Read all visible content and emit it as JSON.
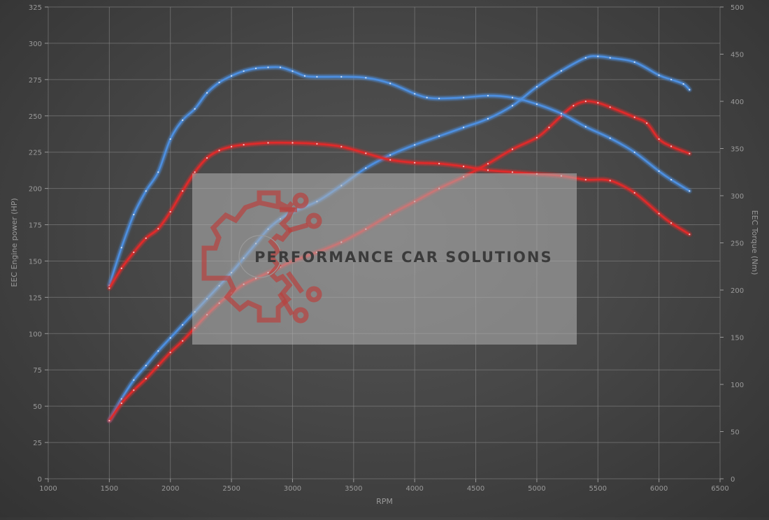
{
  "chart_data": {
    "type": "line",
    "xlabel": "RPM",
    "ylabel_left": "EEC Engine power (HP)",
    "ylabel_right": "EEC Torque (Nm)",
    "xlim": [
      1000,
      6500
    ],
    "ylim_left": [
      0,
      325
    ],
    "ylim_right": [
      0,
      500
    ],
    "x_ticks": [
      1000,
      1500,
      2000,
      2500,
      3000,
      3500,
      4000,
      4500,
      5000,
      5500,
      6000,
      6500
    ],
    "y_left_ticks": [
      0,
      25,
      50,
      75,
      100,
      125,
      150,
      175,
      200,
      225,
      250,
      275,
      300,
      325
    ],
    "y_right_ticks": [
      0,
      50,
      100,
      150,
      200,
      250,
      300,
      350,
      400,
      450,
      500
    ],
    "grid": true,
    "series": [
      {
        "color": "#4d8fe0",
        "axis": "left",
        "points": [
          [
            1500,
            40
          ],
          [
            1600,
            55
          ],
          [
            1700,
            68
          ],
          [
            1800,
            78
          ],
          [
            1900,
            88
          ],
          [
            2000,
            97
          ],
          [
            2100,
            106
          ],
          [
            2200,
            115
          ],
          [
            2300,
            124
          ],
          [
            2400,
            133
          ],
          [
            2500,
            142
          ],
          [
            2600,
            152
          ],
          [
            2700,
            162
          ],
          [
            2800,
            172
          ],
          [
            2900,
            179
          ],
          [
            3000,
            184
          ],
          [
            3200,
            191
          ],
          [
            3400,
            202
          ],
          [
            3600,
            214
          ],
          [
            3800,
            223
          ],
          [
            4000,
            230
          ],
          [
            4200,
            236
          ],
          [
            4400,
            242
          ],
          [
            4600,
            248
          ],
          [
            4800,
            257
          ],
          [
            5000,
            270
          ],
          [
            5200,
            281
          ],
          [
            5400,
            290
          ],
          [
            5500,
            291
          ],
          [
            5600,
            290
          ],
          [
            5800,
            287
          ],
          [
            6000,
            278
          ],
          [
            6100,
            275
          ],
          [
            6200,
            272
          ],
          [
            6250,
            268
          ]
        ]
      },
      {
        "color": "#e02a2a",
        "axis": "left",
        "points": [
          [
            1500,
            40
          ],
          [
            1600,
            52
          ],
          [
            1700,
            61
          ],
          [
            1800,
            69
          ],
          [
            1900,
            78
          ],
          [
            2000,
            87
          ],
          [
            2100,
            95
          ],
          [
            2200,
            104
          ],
          [
            2300,
            113
          ],
          [
            2400,
            121
          ],
          [
            2500,
            128
          ],
          [
            2600,
            134
          ],
          [
            2700,
            138
          ],
          [
            2800,
            142
          ],
          [
            2900,
            146
          ],
          [
            3000,
            150
          ],
          [
            3200,
            156
          ],
          [
            3400,
            163
          ],
          [
            3600,
            172
          ],
          [
            3800,
            182
          ],
          [
            4000,
            191
          ],
          [
            4200,
            200
          ],
          [
            4400,
            208
          ],
          [
            4600,
            217
          ],
          [
            4800,
            227
          ],
          [
            5000,
            235
          ],
          [
            5100,
            242
          ],
          [
            5200,
            250
          ],
          [
            5300,
            257
          ],
          [
            5400,
            260
          ],
          [
            5500,
            259
          ],
          [
            5600,
            256
          ],
          [
            5800,
            249
          ],
          [
            5900,
            245
          ],
          [
            6000,
            234
          ],
          [
            6100,
            229
          ],
          [
            6250,
            224
          ]
        ]
      },
      {
        "color": "#4d8fe0",
        "axis": "right",
        "points": [
          [
            1500,
            205
          ],
          [
            1600,
            245
          ],
          [
            1700,
            280
          ],
          [
            1800,
            305
          ],
          [
            1900,
            325
          ],
          [
            2000,
            360
          ],
          [
            2100,
            380
          ],
          [
            2200,
            392
          ],
          [
            2300,
            409
          ],
          [
            2400,
            420
          ],
          [
            2500,
            427
          ],
          [
            2600,
            432
          ],
          [
            2700,
            435
          ],
          [
            2800,
            436
          ],
          [
            2900,
            436
          ],
          [
            3000,
            432
          ],
          [
            3100,
            427
          ],
          [
            3200,
            426
          ],
          [
            3400,
            426
          ],
          [
            3600,
            425
          ],
          [
            3800,
            419
          ],
          [
            4000,
            408
          ],
          [
            4100,
            404
          ],
          [
            4200,
            403
          ],
          [
            4400,
            404
          ],
          [
            4600,
            406
          ],
          [
            4800,
            404
          ],
          [
            5000,
            397
          ],
          [
            5200,
            387
          ],
          [
            5400,
            373
          ],
          [
            5600,
            361
          ],
          [
            5800,
            346
          ],
          [
            6000,
            326
          ],
          [
            6100,
            317
          ],
          [
            6250,
            305
          ]
        ]
      },
      {
        "color": "#e02a2a",
        "axis": "right",
        "points": [
          [
            1500,
            202
          ],
          [
            1600,
            223
          ],
          [
            1700,
            240
          ],
          [
            1800,
            255
          ],
          [
            1900,
            265
          ],
          [
            2000,
            283
          ],
          [
            2100,
            305
          ],
          [
            2200,
            325
          ],
          [
            2300,
            340
          ],
          [
            2400,
            348
          ],
          [
            2500,
            352
          ],
          [
            2600,
            354
          ],
          [
            2800,
            356
          ],
          [
            3000,
            356
          ],
          [
            3200,
            355
          ],
          [
            3400,
            352
          ],
          [
            3600,
            345
          ],
          [
            3800,
            338
          ],
          [
            4000,
            335
          ],
          [
            4200,
            334
          ],
          [
            4400,
            331
          ],
          [
            4600,
            327
          ],
          [
            4800,
            325
          ],
          [
            5000,
            323
          ],
          [
            5200,
            321
          ],
          [
            5400,
            317
          ],
          [
            5600,
            316
          ],
          [
            5800,
            303
          ],
          [
            6000,
            281
          ],
          [
            6100,
            271
          ],
          [
            6250,
            259
          ]
        ]
      }
    ],
    "watermark": {
      "text": "PERFORMANCE CAR SOLUTIONS"
    }
  }
}
